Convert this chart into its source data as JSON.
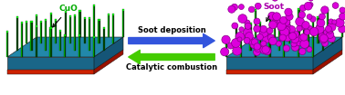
{
  "fig_width": 3.78,
  "fig_height": 1.05,
  "dpi": 100,
  "bg_color": "#ffffff",
  "cuo_label": "CuO",
  "cuo_label_color": "#00aa00",
  "soot_label": "Soot",
  "soot_label_color": "#aa00aa",
  "arrow1_text": "Soot deposition",
  "arrow1_color": "#3355dd",
  "arrow2_text": "Catalytic combustion",
  "arrow2_color": "#44cc00",
  "text_color": "#000000",
  "platform_top_color": "#2288aa",
  "platform_front_color": "#1a6688",
  "platform_right_color": "#155577",
  "platform_bottom_color": "#cc2200",
  "platform_bottom_right_color": "#991100",
  "rod_body_color": "#004400",
  "rod_highlight_color": "#00cc00",
  "rod_tip_color": "#00dd00",
  "soot_particle_color": "#dd00dd",
  "soot_particle_edge": "#880088"
}
